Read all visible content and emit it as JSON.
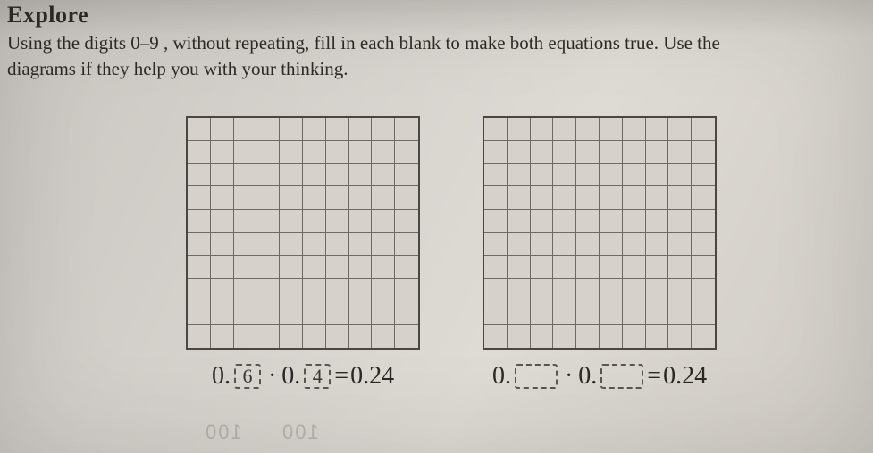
{
  "heading": "Explore",
  "instructions_line1": "Using the digits 0–9 , without repeating, fill in each blank to make both equations true. Use the",
  "instructions_line2": "diagrams if they help you with your thinking.",
  "grid": {
    "rows": 10,
    "cols": 10
  },
  "equations": {
    "left": {
      "lead1": "0.",
      "blank1": "6",
      "dot": "·",
      "lead2": "0.",
      "blank2": "4",
      "eq": "=",
      "result": "0.24"
    },
    "right": {
      "lead1": "0.",
      "blank1": "",
      "dot": "·",
      "lead2": "0.",
      "blank2": "",
      "eq": "=",
      "result": "0.24"
    }
  },
  "ghost": {
    "t1": "100",
    "t2": "100"
  },
  "colors": {
    "text": "#2a2826",
    "grid_border": "#4a4742",
    "grid_line": "#6d6a63",
    "blank_border": "#5a564f",
    "paper_bg": "#d4d0cb"
  }
}
